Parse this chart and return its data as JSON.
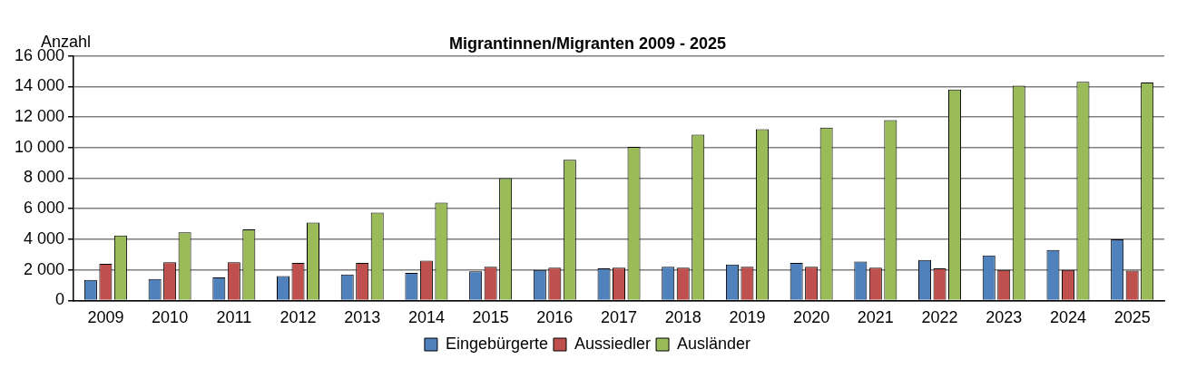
{
  "chart_data": {
    "type": "bar",
    "title": "Migrantinnen/Migranten 2009 - 2025",
    "ylabel": "Anzahl",
    "categories": [
      "2009",
      "2010",
      "2011",
      "2012",
      "2013",
      "2014",
      "2015",
      "2016",
      "2017",
      "2018",
      "2019",
      "2020",
      "2021",
      "2022",
      "2023",
      "2024",
      "2025"
    ],
    "series": [
      {
        "name": "Eingebürgerte",
        "color": "#4f81bd",
        "values": [
          1350,
          1400,
          1500,
          1600,
          1700,
          1800,
          1900,
          2000,
          2100,
          2200,
          2350,
          2450,
          2550,
          2650,
          2950,
          3300,
          4000
        ]
      },
      {
        "name": "Aussiedler",
        "color": "#c0504d",
        "values": [
          2400,
          2500,
          2500,
          2450,
          2450,
          2600,
          2200,
          2150,
          2150,
          2150,
          2200,
          2200,
          2150,
          2100,
          2000,
          2000,
          1950
        ]
      },
      {
        "name": "Ausländer",
        "color": "#9bbb59",
        "values": [
          4250,
          4450,
          4650,
          5100,
          5750,
          6400,
          8000,
          9200,
          10050,
          10850,
          11200,
          11300,
          11800,
          13800,
          14050,
          14300,
          14250
        ]
      }
    ],
    "ylim": [
      0,
      16000
    ],
    "yticks": [
      {
        "value": 0,
        "label": "0"
      },
      {
        "value": 2000,
        "label": "2 000"
      },
      {
        "value": 4000,
        "label": "4 000"
      },
      {
        "value": 6000,
        "label": "6 000"
      },
      {
        "value": 8000,
        "label": "8 000"
      },
      {
        "value": 10000,
        "label": "10 000"
      },
      {
        "value": 12000,
        "label": "12 000"
      },
      {
        "value": 14000,
        "label": "14 000"
      },
      {
        "value": 16000,
        "label": "16 000"
      }
    ],
    "grid": "y",
    "legend": "bottom"
  }
}
